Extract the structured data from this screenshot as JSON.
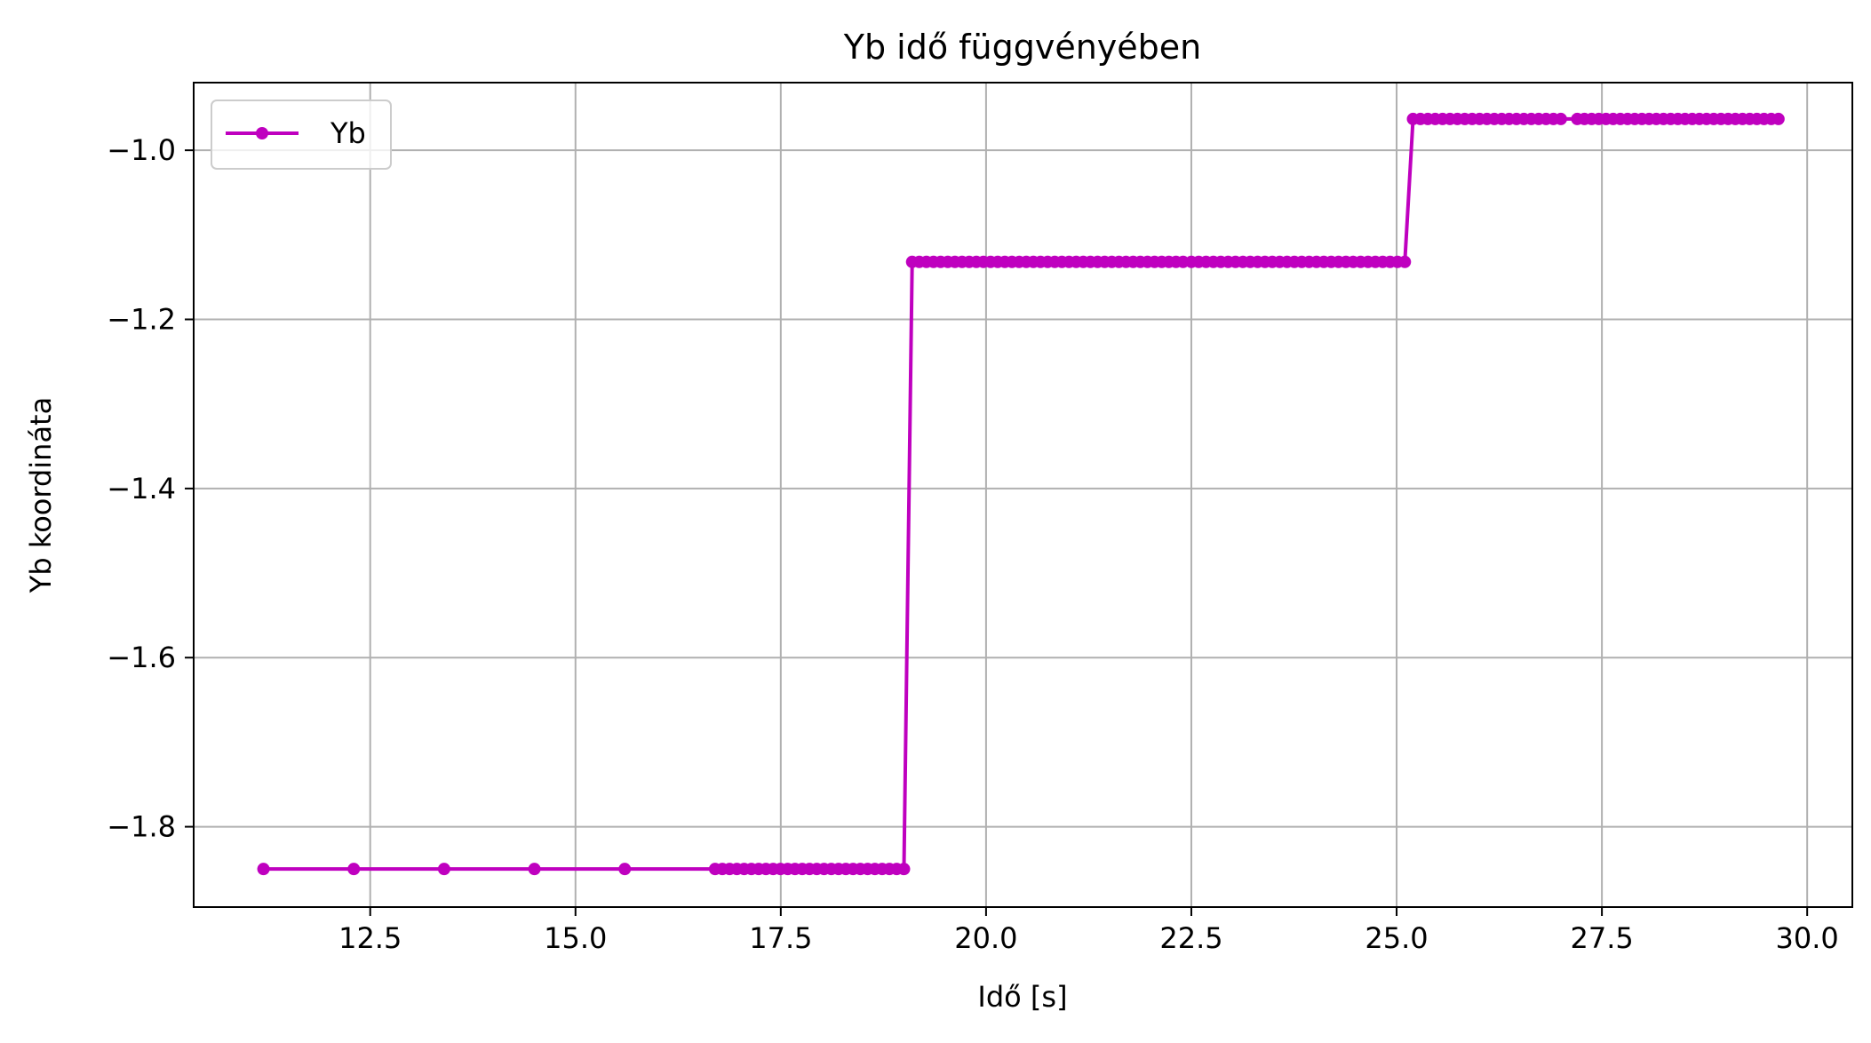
{
  "chart_data": {
    "type": "line",
    "title": "Yb idő függvényében",
    "xlabel": "Idő [s]",
    "ylabel": "Yb koordináta",
    "xlim": [
      10.35,
      30.55
    ],
    "ylim": [
      -1.895,
      -0.92
    ],
    "xticks": [
      12.5,
      15.0,
      17.5,
      20.0,
      22.5,
      25.0,
      27.5,
      30.0
    ],
    "xtick_labels": [
      "12.5",
      "15.0",
      "17.5",
      "20.0",
      "22.5",
      "25.0",
      "27.5",
      "30.0"
    ],
    "yticks": [
      -1.8,
      -1.6,
      -1.4,
      -1.2,
      -1.0
    ],
    "ytick_labels": [
      "−1.8",
      "−1.6",
      "−1.4",
      "−1.2",
      "−1.0"
    ],
    "grid": true,
    "legend_position": "upper-left",
    "series": [
      {
        "name": "Yb",
        "color": "#bf00bf",
        "marker": "circle",
        "segments": [
          {
            "x_start": 11.2,
            "x_end": 15.6,
            "y": -1.85,
            "points": 5
          },
          {
            "x_start": 16.7,
            "x_end": 19.0,
            "y": -1.85,
            "points": 27
          },
          {
            "x_start": 19.1,
            "x_end": 22.4,
            "y": -1.132,
            "points": 39
          },
          {
            "x_start": 22.5,
            "x_end": 25.1,
            "y": -1.132,
            "points": 30
          },
          {
            "x_start": 25.2,
            "x_end": 27.0,
            "y": -0.963,
            "points": 21
          },
          {
            "x_start": 27.2,
            "x_end": 29.65,
            "y": -0.963,
            "points": 29
          }
        ]
      }
    ]
  }
}
